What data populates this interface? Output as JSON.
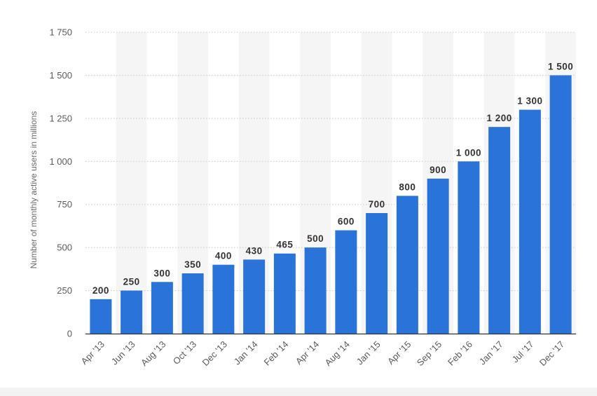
{
  "chart_data": {
    "type": "bar",
    "ylabel": "Number of monthly active users in millions",
    "xlabel": "",
    "title": "",
    "ylim": [
      0,
      1750
    ],
    "yticks": [
      0,
      250,
      500,
      750,
      1000,
      1250,
      1500,
      1750
    ],
    "ytick_labels": [
      "0",
      "250",
      "500",
      "750",
      "1 000",
      "1 250",
      "1 500",
      "1 750"
    ],
    "grid": "horizontal dotted",
    "categories": [
      "Apr '13",
      "Jun '13",
      "Aug '13",
      "Oct '13",
      "Dec '13",
      "Jan '14",
      "Feb '14",
      "Apr '14",
      "Aug '14",
      "Jan '15",
      "Apr '15",
      "Sep '15",
      "Feb '16",
      "Jan '17",
      "Jul '17",
      "Dec '17"
    ],
    "values": [
      200,
      250,
      300,
      350,
      400,
      430,
      465,
      500,
      600,
      700,
      800,
      900,
      1000,
      1200,
      1300,
      1500
    ],
    "value_labels": [
      "200",
      "250",
      "300",
      "350",
      "400",
      "430",
      "465",
      "500",
      "600",
      "700",
      "800",
      "900",
      "1 000",
      "1 200",
      "1 300",
      "1 500"
    ],
    "bar_color": "#2a74d9",
    "band_color": "#f5f5f5",
    "grid_color": "#c8c8c8"
  }
}
